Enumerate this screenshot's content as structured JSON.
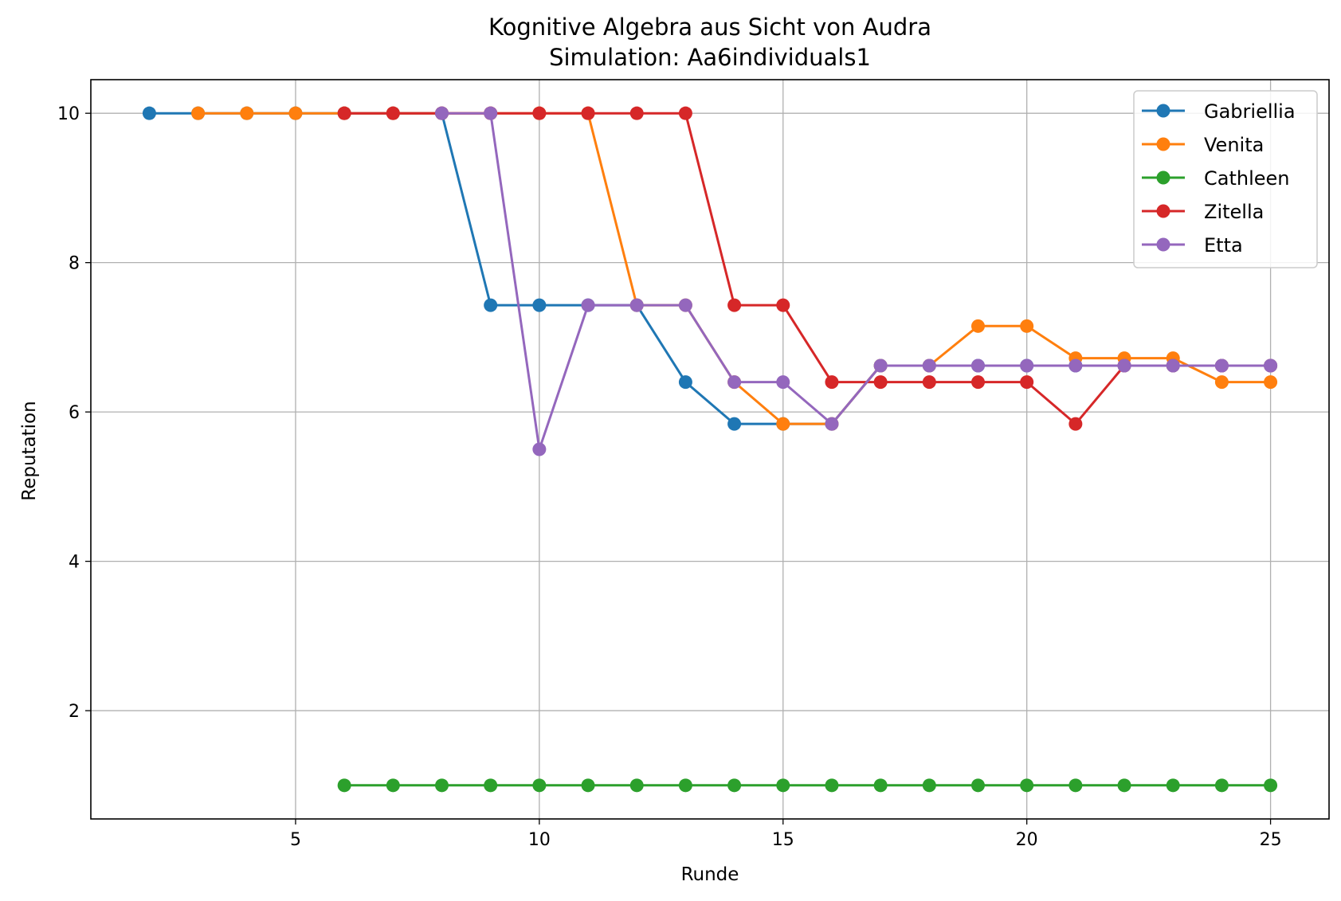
{
  "chart_data": {
    "type": "line",
    "title": "Kognitive Algebra aus Sicht von Audra",
    "subtitle": "Simulation: Aa6individuals1",
    "xlabel": "Runde",
    "ylabel": "Reputation",
    "xlim": [
      0.8,
      26.2
    ],
    "ylim": [
      0.55,
      10.45
    ],
    "xticks": [
      5,
      10,
      15,
      20,
      25
    ],
    "yticks": [
      2,
      4,
      6,
      8,
      10
    ],
    "grid": true,
    "legend_position": "top-right",
    "series": [
      {
        "name": "Gabriellia",
        "color": "#1f77b4",
        "x": [
          2,
          3,
          4,
          5,
          6,
          7,
          8,
          9,
          10,
          11,
          12,
          13,
          14,
          15,
          16,
          17,
          18,
          19,
          20,
          21,
          22,
          23,
          24,
          25
        ],
        "y": [
          10,
          10,
          10,
          10,
          10,
          10,
          10,
          7.43,
          7.43,
          7.43,
          7.43,
          6.4,
          5.84,
          5.84,
          5.84,
          6.62,
          6.62,
          6.62,
          6.62,
          6.62,
          6.62,
          6.62,
          6.62,
          6.62
        ]
      },
      {
        "name": "Venita",
        "color": "#ff7f0e",
        "x": [
          3,
          4,
          5,
          6,
          7,
          8,
          9,
          10,
          11,
          12,
          13,
          14,
          15,
          16,
          17,
          18,
          19,
          20,
          21,
          22,
          23,
          24,
          25
        ],
        "y": [
          10,
          10,
          10,
          10,
          10,
          10,
          10,
          10,
          10,
          7.43,
          7.43,
          6.4,
          5.84,
          5.84,
          6.62,
          6.62,
          7.15,
          7.15,
          6.72,
          6.72,
          6.72,
          6.4,
          6.4
        ]
      },
      {
        "name": "Cathleen",
        "color": "#2ca02c",
        "x": [
          6,
          7,
          8,
          9,
          10,
          11,
          12,
          13,
          14,
          15,
          16,
          17,
          18,
          19,
          20,
          21,
          22,
          23,
          24,
          25
        ],
        "y": [
          1,
          1,
          1,
          1,
          1,
          1,
          1,
          1,
          1,
          1,
          1,
          1,
          1,
          1,
          1,
          1,
          1,
          1,
          1,
          1
        ]
      },
      {
        "name": "Zitella",
        "color": "#d62728",
        "x": [
          6,
          7,
          8,
          9,
          10,
          11,
          12,
          13,
          14,
          15,
          16,
          17,
          18,
          19,
          20,
          21,
          22,
          23,
          24,
          25
        ],
        "y": [
          10,
          10,
          10,
          10,
          10,
          10,
          10,
          10,
          7.43,
          7.43,
          6.4,
          6.4,
          6.4,
          6.4,
          6.4,
          5.84,
          6.62,
          6.62,
          6.62,
          6.62
        ]
      },
      {
        "name": "Etta",
        "color": "#9467bd",
        "x": [
          8,
          9,
          10,
          11,
          12,
          13,
          14,
          15,
          16,
          17,
          18,
          19,
          20,
          21,
          22,
          23,
          24,
          25
        ],
        "y": [
          10,
          10,
          5.5,
          7.43,
          7.43,
          7.43,
          6.4,
          6.4,
          5.84,
          6.62,
          6.62,
          6.62,
          6.62,
          6.62,
          6.62,
          6.62,
          6.62,
          6.62
        ]
      }
    ]
  }
}
